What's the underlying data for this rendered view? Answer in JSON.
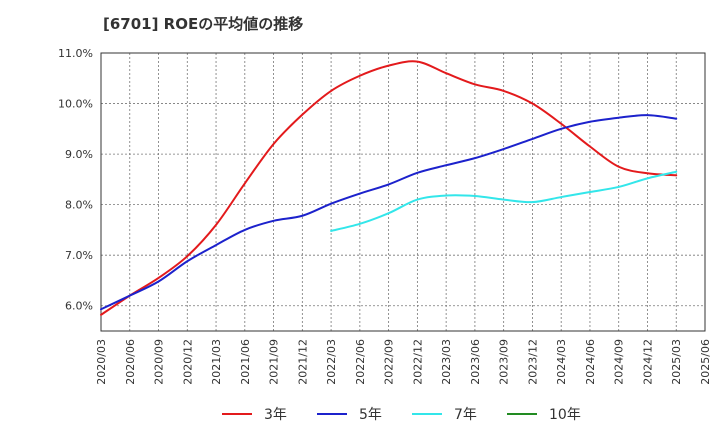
{
  "chart_data": {
    "type": "line",
    "title": "[6701]  ROEの平均値の推移",
    "xlabel": "",
    "ylabel": "",
    "ylim": [
      5.5,
      11.0
    ],
    "yticks": [
      6.0,
      7.0,
      8.0,
      9.0,
      10.0,
      11.0
    ],
    "ytick_labels": [
      "6.0%",
      "7.0%",
      "8.0%",
      "9.0%",
      "10.0%",
      "11.0%"
    ],
    "x_categories": [
      "2020/03",
      "2020/06",
      "2020/09",
      "2020/12",
      "2021/03",
      "2021/06",
      "2021/09",
      "2021/12",
      "2022/03",
      "2022/06",
      "2022/09",
      "2022/12",
      "2023/03",
      "2023/06",
      "2023/09",
      "2023/12",
      "2024/03",
      "2024/06",
      "2024/09",
      "2024/12",
      "2025/03",
      "2025/06"
    ],
    "grid": true,
    "legend_position": "bottom",
    "series": [
      {
        "name": "3年",
        "color": "#e31a1c",
        "points": [
          [
            "2020/03",
            5.82
          ],
          [
            "2020/06",
            6.2
          ],
          [
            "2020/09",
            6.55
          ],
          [
            "2020/12",
            6.98
          ],
          [
            "2021/03",
            7.6
          ],
          [
            "2021/06",
            8.42
          ],
          [
            "2021/09",
            9.2
          ],
          [
            "2021/12",
            9.78
          ],
          [
            "2022/03",
            10.25
          ],
          [
            "2022/06",
            10.55
          ],
          [
            "2022/09",
            10.75
          ],
          [
            "2022/12",
            10.83
          ],
          [
            "2023/03",
            10.6
          ],
          [
            "2023/06",
            10.38
          ],
          [
            "2023/09",
            10.25
          ],
          [
            "2023/12",
            10.0
          ],
          [
            "2024/03",
            9.6
          ],
          [
            "2024/06",
            9.15
          ],
          [
            "2024/09",
            8.75
          ],
          [
            "2024/12",
            8.62
          ],
          [
            "2025/03",
            8.58
          ]
        ]
      },
      {
        "name": "5年",
        "color": "#1c22cc",
        "points": [
          [
            "2020/03",
            5.93
          ],
          [
            "2020/06",
            6.2
          ],
          [
            "2020/09",
            6.48
          ],
          [
            "2020/12",
            6.88
          ],
          [
            "2021/03",
            7.2
          ],
          [
            "2021/06",
            7.5
          ],
          [
            "2021/09",
            7.68
          ],
          [
            "2021/12",
            7.78
          ],
          [
            "2022/03",
            8.02
          ],
          [
            "2022/06",
            8.22
          ],
          [
            "2022/09",
            8.4
          ],
          [
            "2022/12",
            8.63
          ],
          [
            "2023/03",
            8.78
          ],
          [
            "2023/06",
            8.92
          ],
          [
            "2023/09",
            9.1
          ],
          [
            "2023/12",
            9.3
          ],
          [
            "2024/03",
            9.5
          ],
          [
            "2024/06",
            9.64
          ],
          [
            "2024/09",
            9.72
          ],
          [
            "2024/12",
            9.77
          ],
          [
            "2025/03",
            9.7
          ]
        ]
      },
      {
        "name": "7年",
        "color": "#33e6ea",
        "points": [
          [
            "2022/03",
            7.48
          ],
          [
            "2022/06",
            7.62
          ],
          [
            "2022/09",
            7.83
          ],
          [
            "2022/12",
            8.1
          ],
          [
            "2023/03",
            8.18
          ],
          [
            "2023/06",
            8.17
          ],
          [
            "2023/09",
            8.1
          ],
          [
            "2023/12",
            8.05
          ],
          [
            "2024/03",
            8.15
          ],
          [
            "2024/06",
            8.25
          ],
          [
            "2024/09",
            8.35
          ],
          [
            "2024/12",
            8.52
          ],
          [
            "2025/03",
            8.65
          ]
        ]
      },
      {
        "name": "10年",
        "color": "#228b22",
        "points": []
      }
    ]
  }
}
